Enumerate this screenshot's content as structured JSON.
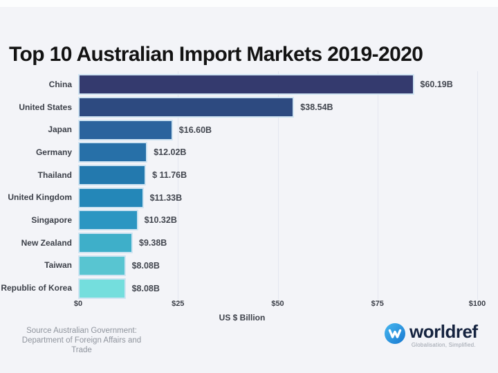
{
  "page": {
    "background_color": "#f3f4f8",
    "gridline_color": "#e4e6ef",
    "bar_stroke_color": "#cfe4f2"
  },
  "title": "Top 10 Australian Import Markets 2019-2020",
  "chart_data": {
    "type": "bar",
    "orientation": "horizontal",
    "title": "Top 10 Australian Import Markets 2019-2020",
    "categories": [
      "China",
      "United States",
      "Japan",
      "Germany",
      "Thailand",
      "United Kingdom",
      "Singapore",
      "New Zealand",
      "Taiwan",
      "Republic of Korea"
    ],
    "values": [
      60.19,
      38.54,
      16.6,
      12.02,
      11.76,
      11.33,
      10.32,
      9.38,
      8.08,
      8.08
    ],
    "value_labels": [
      "$60.19B",
      "$38.54B",
      "$16.60B",
      "$12.02B",
      "$ 11.76B",
      "$11.33B",
      "$10.32B",
      "$9.38B",
      "$8.08B",
      "$8.08B"
    ],
    "bar_colors": [
      "#343a6e",
      "#2d4a80",
      "#2b639d",
      "#2770a8",
      "#2379ae",
      "#2487b8",
      "#2c96c2",
      "#3eafc9",
      "#58c5d1",
      "#74dedd"
    ],
    "xlabel": "US $ Billion",
    "ylabel": "",
    "x_ticks": [
      "$0",
      "$25",
      "$50",
      "$75",
      "$100"
    ],
    "x_tick_values": [
      0,
      25,
      50,
      75,
      100
    ],
    "xlim": [
      0,
      100
    ],
    "grid": "vertical-only",
    "legend": "none"
  },
  "source": {
    "line1": "Source Australian Government:",
    "line2": "Department of Foreign Affairs and Trade"
  },
  "logo": {
    "name": "worldref",
    "tagline": "Globalisation, Simplified.",
    "mark_gradient_top": "#47b7ef",
    "mark_gradient_bottom": "#1878d0",
    "text_color": "#15233f"
  }
}
